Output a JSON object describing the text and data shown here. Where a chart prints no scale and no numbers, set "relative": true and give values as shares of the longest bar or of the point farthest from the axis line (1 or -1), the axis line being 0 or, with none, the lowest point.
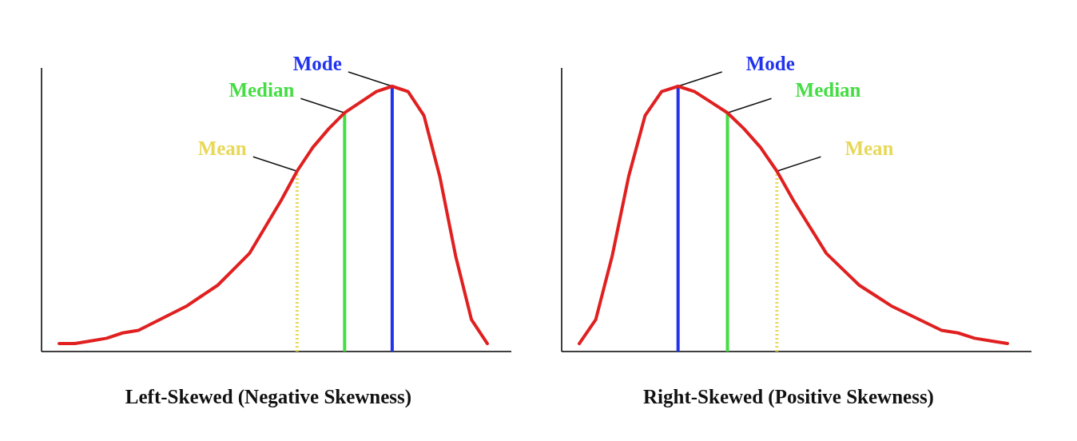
{
  "chart_data": [
    {
      "type": "line",
      "relative": true,
      "xlabel": "Left-Skewed (Negative Skewness)",
      "categories": [
        null,
        null,
        null,
        null,
        null,
        null,
        null,
        null,
        null,
        null,
        null,
        null,
        null,
        null,
        null,
        null,
        null,
        null,
        null,
        null,
        null,
        null,
        null,
        null,
        null,
        null,
        null,
        null
      ],
      "series": [
        {
          "color": "#e02020",
          "values": [
            0.03,
            0.03,
            0.04,
            0.05,
            0.07,
            0.08,
            0.11,
            0.14,
            0.17,
            0.21,
            0.25,
            0.31,
            0.37,
            0.47,
            0.57,
            0.68,
            0.77,
            0.84,
            0.9,
            0.94,
            0.98,
            1,
            0.98,
            0.89,
            0.66,
            0.36,
            0.12,
            0.03
          ]
        }
      ],
      "annotations": [
        "Mean",
        "Median",
        "Mode"
      ]
    },
    {
      "type": "line",
      "relative": true,
      "xlabel": "Right-Skewed (Positive Skewness)",
      "categories": [
        null,
        null,
        null,
        null,
        null,
        null,
        null,
        null,
        null,
        null,
        null,
        null,
        null,
        null,
        null,
        null,
        null,
        null,
        null,
        null,
        null,
        null,
        null,
        null,
        null,
        null,
        null
      ],
      "series": [
        {
          "color": "#e02020",
          "values": [
            0.03,
            0.12,
            0.36,
            0.66,
            0.89,
            0.98,
            1,
            0.98,
            0.94,
            0.9,
            0.84,
            0.77,
            0.68,
            0.57,
            0.47,
            0.37,
            0.31,
            0.25,
            0.21,
            0.17,
            0.14,
            0.11,
            0.08,
            0.07,
            0.05,
            0.04,
            0.03
          ]
        }
      ],
      "annotations": [
        "Mode",
        "Median",
        "Mean"
      ]
    }
  ]
}
